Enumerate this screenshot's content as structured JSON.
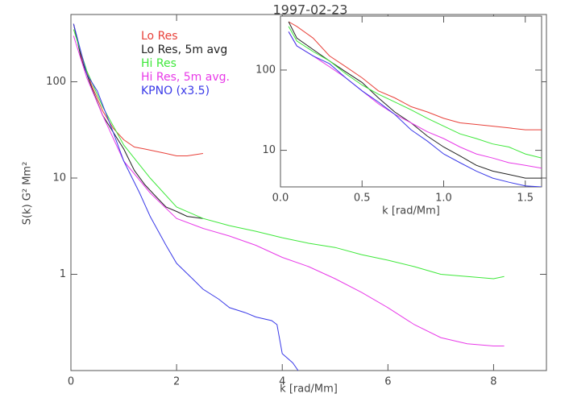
{
  "chart_data": [
    {
      "type": "line",
      "title": "1997-02-23",
      "xlabel": "k [rad/Mm]",
      "ylabel": "S(k) G² Mm²",
      "xlim": [
        0,
        9
      ],
      "ylim": [
        0.1,
        500
      ],
      "ylog": true,
      "xticks": [
        0,
        2,
        4,
        6,
        8
      ],
      "yticks": [
        1,
        10,
        100
      ],
      "legend": "top-left",
      "series": [
        {
          "name": "Lo Res",
          "color": "#e8413a",
          "x": [
            0.05,
            0.2,
            0.4,
            0.6,
            0.8,
            1.0,
            1.2,
            1.4,
            1.6,
            1.8,
            2.0,
            2.2,
            2.5
          ],
          "values": [
            400,
            180,
            90,
            50,
            33,
            25,
            21,
            20,
            19,
            18,
            17,
            17,
            18
          ]
        },
        {
          "name": "Lo Res, 5m avg",
          "color": "#222222",
          "x": [
            0.05,
            0.2,
            0.4,
            0.6,
            0.8,
            1.0,
            1.2,
            1.4,
            1.6,
            1.8,
            2.0,
            2.2,
            2.5
          ],
          "values": [
            400,
            170,
            85,
            45,
            30,
            20,
            12,
            8.5,
            6.5,
            5,
            4.5,
            4,
            3.8
          ]
        },
        {
          "name": "Hi Res",
          "color": "#3ee83a",
          "x": [
            0.05,
            0.3,
            0.6,
            1.0,
            1.5,
            2.0,
            2.5,
            3.0,
            3.5,
            4.0,
            4.5,
            5.0,
            5.5,
            6.0,
            6.5,
            7.0,
            7.5,
            8.0,
            8.2
          ],
          "values": [
            350,
            130,
            55,
            22,
            10,
            5,
            3.8,
            3.2,
            2.8,
            2.4,
            2.1,
            1.9,
            1.6,
            1.4,
            1.2,
            1.0,
            0.95,
            0.9,
            0.95
          ]
        },
        {
          "name": "Hi Res, 5m avg.",
          "color": "#e83ae8",
          "x": [
            0.05,
            0.3,
            0.6,
            1.0,
            1.5,
            2.0,
            2.5,
            3.0,
            3.5,
            4.0,
            4.5,
            5.0,
            5.5,
            6.0,
            6.5,
            7.0,
            7.5,
            8.0,
            8.2
          ],
          "values": [
            300,
            110,
            45,
            15,
            7,
            3.8,
            3,
            2.5,
            2,
            1.5,
            1.2,
            0.9,
            0.65,
            0.45,
            0.3,
            0.22,
            0.19,
            0.18,
            0.18
          ]
        },
        {
          "name": "KPNO (x3.5)",
          "color": "#3a3ae8",
          "x": [
            0.05,
            0.3,
            0.5,
            0.8,
            1.0,
            1.3,
            1.5,
            1.8,
            2.0,
            2.3,
            2.5,
            2.8,
            3.0,
            3.3,
            3.5,
            3.8,
            3.9,
            4.0,
            4.2,
            4.3
          ],
          "values": [
            400,
            120,
            80,
            30,
            15,
            7,
            4,
            2,
            1.3,
            0.9,
            0.7,
            0.55,
            0.45,
            0.4,
            0.36,
            0.33,
            0.3,
            0.15,
            0.12,
            0.1
          ]
        }
      ]
    },
    {
      "type": "line",
      "xlabel": "k [rad/Mm]",
      "xlim": [
        0,
        1.6
      ],
      "ylim": [
        3.5,
        470
      ],
      "ylog": true,
      "xticks": [
        {
          "value": 0,
          "label": "0.0"
        },
        0.5,
        {
          "value": 1,
          "label": "1.0"
        },
        1.5
      ],
      "yticks": [
        10,
        100
      ],
      "series": [
        {
          "color": "#e8413a",
          "x": [
            0.05,
            0.1,
            0.2,
            0.3,
            0.4,
            0.5,
            0.6,
            0.7,
            0.8,
            0.9,
            1.0,
            1.1,
            1.2,
            1.3,
            1.4,
            1.5,
            1.6
          ],
          "values": [
            400,
            350,
            250,
            150,
            110,
            80,
            55,
            45,
            35,
            30,
            25,
            22,
            21,
            20,
            19,
            18,
            18
          ]
        },
        {
          "color": "#222222",
          "x": [
            0.05,
            0.1,
            0.2,
            0.3,
            0.4,
            0.5,
            0.6,
            0.7,
            0.8,
            0.9,
            1.0,
            1.1,
            1.2,
            1.3,
            1.4,
            1.5,
            1.6
          ],
          "values": [
            400,
            250,
            180,
            130,
            95,
            70,
            45,
            30,
            22,
            15,
            11,
            8.5,
            6.5,
            5.5,
            5,
            4.5,
            4.5
          ]
        },
        {
          "color": "#3ee83a",
          "x": [
            0.05,
            0.1,
            0.2,
            0.3,
            0.4,
            0.5,
            0.6,
            0.7,
            0.8,
            0.9,
            1.0,
            1.1,
            1.2,
            1.3,
            1.4,
            1.5,
            1.6
          ],
          "values": [
            350,
            230,
            170,
            130,
            90,
            65,
            50,
            40,
            32,
            25,
            20,
            16,
            14,
            12,
            11,
            9,
            8
          ]
        },
        {
          "color": "#e83ae8",
          "x": [
            0.05,
            0.1,
            0.2,
            0.3,
            0.4,
            0.5,
            0.6,
            0.7,
            0.8,
            0.9,
            1.0,
            1.1,
            1.2,
            1.3,
            1.4,
            1.5,
            1.6
          ],
          "values": [
            300,
            200,
            150,
            110,
            80,
            55,
            38,
            28,
            22,
            17,
            14,
            11,
            9,
            8,
            7,
            6.5,
            6
          ]
        },
        {
          "color": "#3a3ae8",
          "x": [
            0.05,
            0.1,
            0.2,
            0.3,
            0.4,
            0.5,
            0.6,
            0.7,
            0.8,
            0.9,
            1.0,
            1.1,
            1.2,
            1.3,
            1.4,
            1.5,
            1.6
          ],
          "values": [
            300,
            200,
            150,
            120,
            80,
            55,
            40,
            28,
            18,
            13,
            9,
            7,
            5.5,
            4.5,
            4,
            3.6,
            3.5
          ]
        }
      ]
    }
  ]
}
